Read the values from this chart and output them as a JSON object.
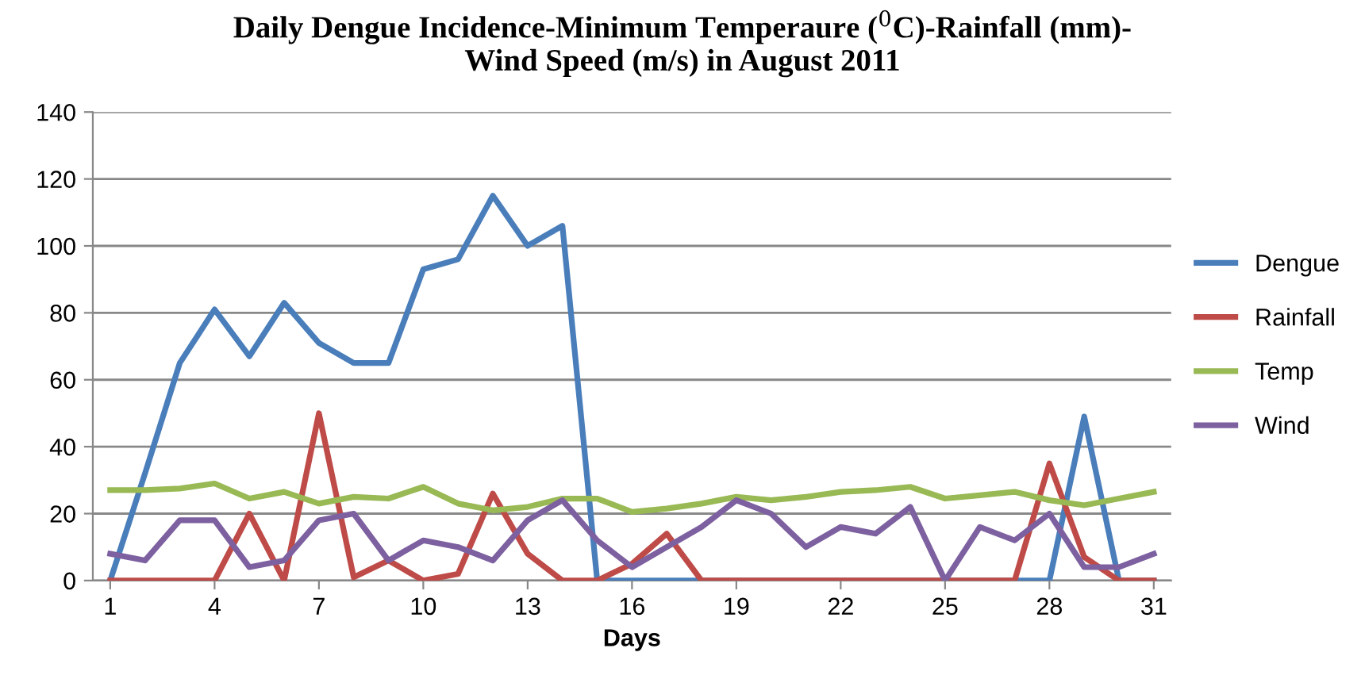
{
  "chart_data": {
    "type": "line",
    "title": "Daily Dengue Incidence-Minimum Temperaure ($^{0}$C)-Rainfall (mm)-\nWind Speed (m/s) in August 2011",
    "xlabel": "Days",
    "x": [
      1,
      2,
      3,
      4,
      5,
      6,
      7,
      8,
      9,
      10,
      11,
      12,
      13,
      14,
      15,
      16,
      17,
      18,
      19,
      20,
      21,
      22,
      23,
      24,
      25,
      26,
      27,
      28,
      29,
      30,
      31
    ],
    "series": [
      {
        "name": "Dengue",
        "color": "#4a7ebb",
        "values": [
          0,
          32,
          65,
          81,
          67,
          83,
          71,
          65,
          65,
          93,
          96,
          115,
          100,
          106,
          0,
          0,
          0,
          0,
          0,
          0,
          0,
          0,
          0,
          0,
          0,
          0,
          0,
          0,
          49,
          0,
          0
        ]
      },
      {
        "name": "Rainfall",
        "color": "#be4b48",
        "values": [
          0,
          0,
          0,
          0,
          20,
          0,
          50,
          1,
          6,
          0,
          2,
          26,
          8,
          0,
          0,
          5,
          14,
          0,
          0,
          0,
          0,
          0,
          0,
          0,
          0,
          0,
          0,
          35,
          7,
          0,
          0
        ]
      },
      {
        "name": "Temp",
        "color": "#98b954",
        "values": [
          27,
          27,
          27.5,
          29,
          24.5,
          26.5,
          23,
          25,
          24.5,
          28,
          23,
          21,
          22,
          24.5,
          24.5,
          20.5,
          21.5,
          23,
          25,
          24,
          25,
          26.5,
          27,
          28,
          24.5,
          25.5,
          26.5,
          24,
          22.5,
          24.5,
          26.5
        ]
      },
      {
        "name": "Wind",
        "color": "#7d60a0",
        "values": [
          8,
          6,
          18,
          18,
          4,
          6,
          18,
          20,
          6,
          12,
          10,
          6,
          18,
          24,
          12,
          4,
          10,
          16,
          24,
          20,
          10,
          16,
          14,
          22,
          0,
          16,
          12,
          20,
          4,
          4,
          8
        ]
      }
    ],
    "xlim": [
      0.5,
      31.5
    ],
    "xticks": [
      1,
      4,
      7,
      10,
      13,
      16,
      19,
      22,
      25,
      28,
      31
    ],
    "ylim": [
      0,
      140
    ],
    "yticks": [
      0,
      20,
      40,
      60,
      80,
      100,
      120,
      140
    ],
    "grid": "y",
    "legend": "right",
    "marker": "none",
    "line_style": "solid"
  }
}
